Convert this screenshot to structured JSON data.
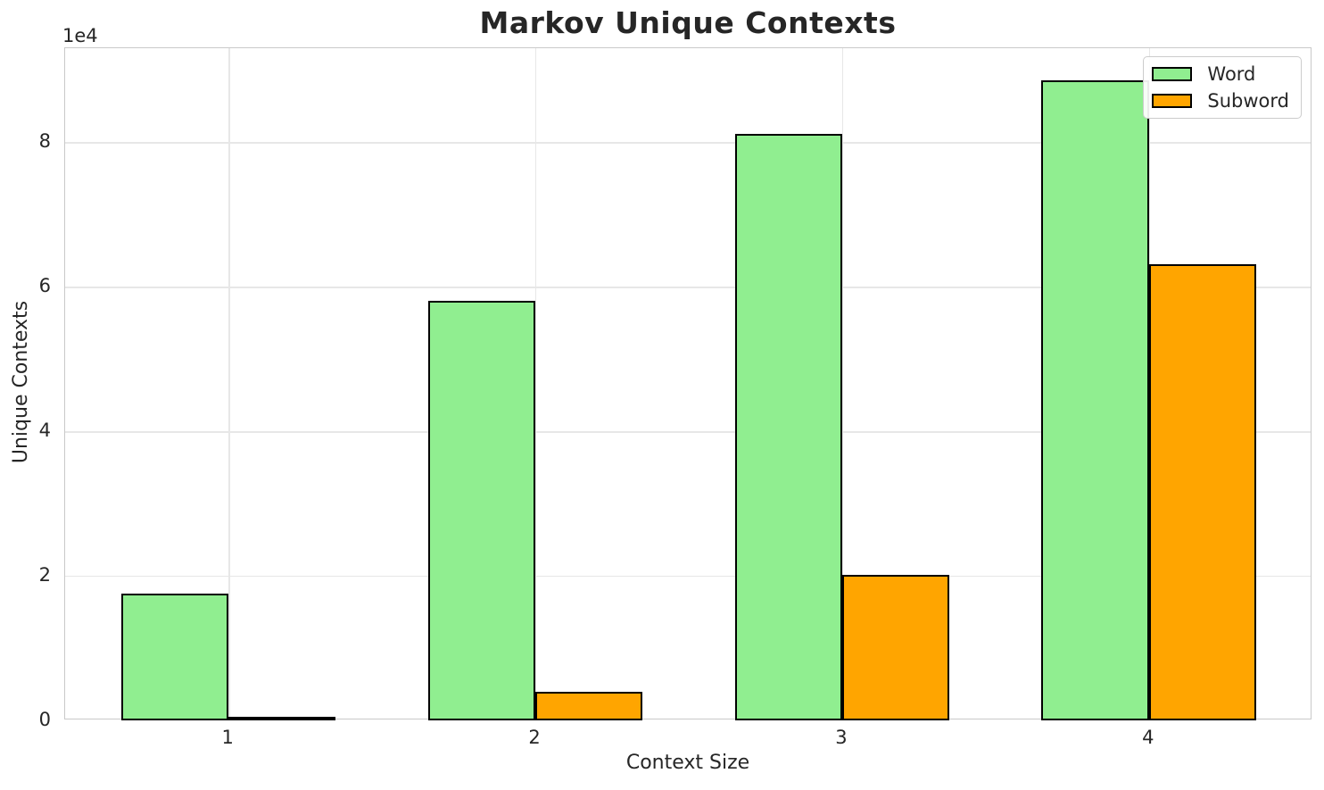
{
  "chart_data": {
    "type": "bar",
    "title": "Markov Unique Contexts",
    "xlabel": "Context Size",
    "ylabel": "Unique Contexts",
    "y_offset_label": "1e4",
    "categories": [
      "1",
      "2",
      "3",
      "4"
    ],
    "series": [
      {
        "name": "Word",
        "color": "#90EE90",
        "values": [
          17500,
          58000,
          81200,
          88600
        ]
      },
      {
        "name": "Subword",
        "color": "#FFA500",
        "values": [
          500,
          4000,
          20100,
          63100
        ]
      }
    ],
    "bar_edge_color": "#000000",
    "bar_width": 0.35,
    "xlim": [
      0.4675,
      4.5325
    ],
    "ylim": [
      0,
      93000
    ],
    "yticks": [
      0,
      20000,
      40000,
      60000,
      80000
    ],
    "ytick_labels": [
      "0",
      "2",
      "4",
      "6",
      "8"
    ],
    "grid": true,
    "legend": {
      "location": "upper right",
      "entries": [
        "Word",
        "Subword"
      ]
    },
    "colors": {
      "grid": "#E7E7E7",
      "spine": "#C9C9C9",
      "text": "#262626",
      "background": "#FFFFFF"
    }
  }
}
